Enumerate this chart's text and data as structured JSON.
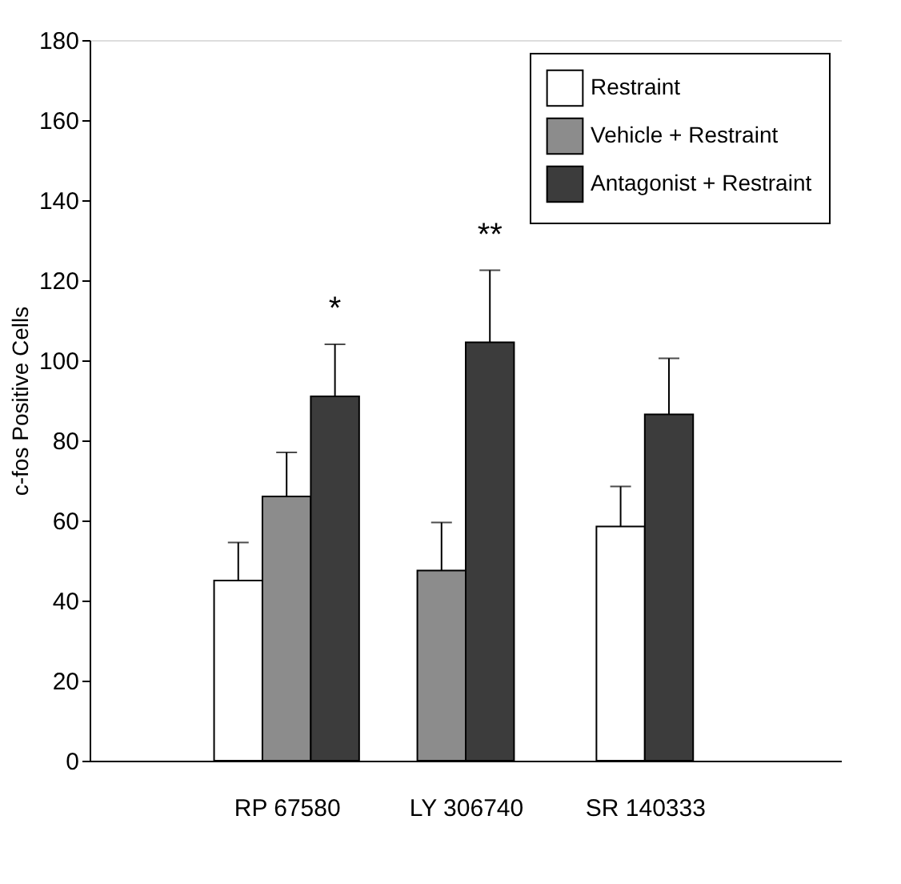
{
  "chart_data": {
    "type": "bar",
    "ylabel": "c-fos Positive Cells",
    "categories": [
      "RP 67580",
      "LY 306740",
      "SR 140333"
    ],
    "series": [
      {
        "name": "Restraint",
        "color": "#ffffff",
        "values": [
          45,
          null,
          58.5
        ],
        "errors": [
          9.5,
          null,
          10
        ]
      },
      {
        "name": "Vehicle + Restraint",
        "color": "#8c8c8c",
        "values": [
          66,
          47.5,
          null
        ],
        "errors": [
          11,
          12,
          null
        ]
      },
      {
        "name": "Antagonist + Restraint",
        "color": "#3c3c3c",
        "values": [
          91,
          104.5,
          86.5
        ],
        "errors": [
          13,
          18,
          14
        ]
      }
    ],
    "ylim": [
      0,
      180
    ],
    "yticks": [
      0,
      20,
      40,
      60,
      80,
      100,
      120,
      140,
      160,
      180
    ],
    "grid": false,
    "legend": "top right",
    "annotations": [
      "*",
      "**"
    ]
  }
}
